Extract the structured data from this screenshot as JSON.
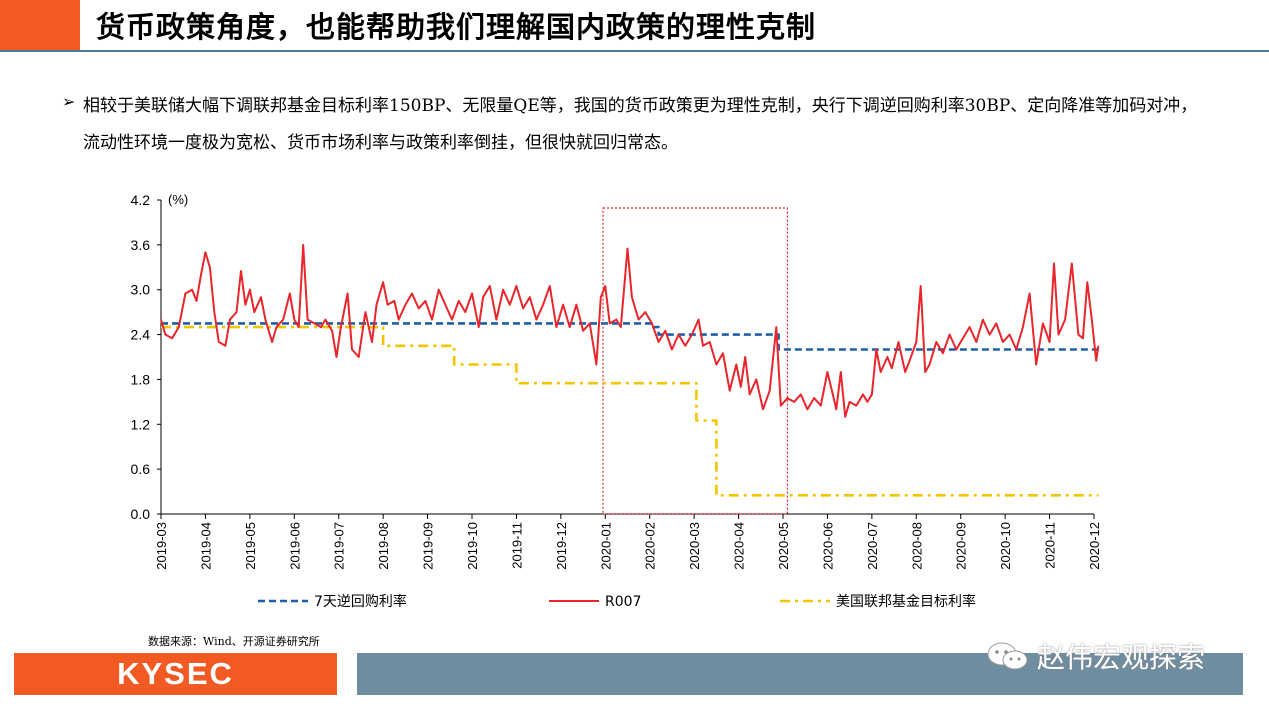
{
  "header": {
    "title": "货币政策角度，也能帮助我们理解国内政策的理性克制"
  },
  "body": {
    "bullet_symbol": "➢",
    "paragraph": "相较于美联储大幅下调联邦基金目标利率150BP、无限量QE等，我国的货币政策更为理性克制，央行下调逆回购利率30BP、定向降准等加码对冲，流动性环境一度极为宽松、货币市场利率与政策利率倒挂，但很快就回归常态。"
  },
  "chart_data": {
    "type": "line",
    "unit_label": "(%)",
    "ylim": [
      0,
      4.2
    ],
    "yticks": [
      "4.2",
      "3.6",
      "3.0",
      "2.4",
      "1.8",
      "1.2",
      "0.6",
      "0.0"
    ],
    "x_range": [
      "2019-03",
      "2020-12"
    ],
    "xticks": [
      "2019-03",
      "2019-04",
      "2019-05",
      "2019-06",
      "2019-07",
      "2019-08",
      "2019-09",
      "2019-10",
      "2019-11",
      "2019-12",
      "2020-01",
      "2020-02",
      "2020-03",
      "2020-04",
      "2020-05",
      "2020-06",
      "2020-07",
      "2020-08",
      "2020-09",
      "2020-10",
      "2020-11",
      "2020-12"
    ],
    "highlight": {
      "from": 9.95,
      "to": 14.1,
      "color": "#e8262c"
    },
    "series": [
      {
        "name": "7天逆回购利率",
        "color": "#1f5fa8",
        "style": "dash",
        "points": [
          [
            0,
            2.55
          ],
          [
            11.05,
            2.55
          ],
          [
            11.05,
            2.5
          ],
          [
            11.2,
            2.5
          ],
          [
            11.2,
            2.4
          ],
          [
            13.9,
            2.4
          ],
          [
            13.9,
            2.2
          ],
          [
            21.1,
            2.2
          ]
        ]
      },
      {
        "name": "R007",
        "color": "#e8262c",
        "style": "solid",
        "points": [
          [
            0,
            2.6
          ],
          [
            0.1,
            2.4
          ],
          [
            0.25,
            2.35
          ],
          [
            0.4,
            2.5
          ],
          [
            0.55,
            2.95
          ],
          [
            0.7,
            3.0
          ],
          [
            0.8,
            2.85
          ],
          [
            0.9,
            3.2
          ],
          [
            1.0,
            3.5
          ],
          [
            1.1,
            3.3
          ],
          [
            1.2,
            2.7
          ],
          [
            1.3,
            2.3
          ],
          [
            1.45,
            2.25
          ],
          [
            1.55,
            2.6
          ],
          [
            1.7,
            2.7
          ],
          [
            1.8,
            3.25
          ],
          [
            1.9,
            2.8
          ],
          [
            2.0,
            3.0
          ],
          [
            2.1,
            2.7
          ],
          [
            2.25,
            2.9
          ],
          [
            2.35,
            2.6
          ],
          [
            2.5,
            2.3
          ],
          [
            2.6,
            2.5
          ],
          [
            2.75,
            2.6
          ],
          [
            2.9,
            2.95
          ],
          [
            3.0,
            2.6
          ],
          [
            3.1,
            2.5
          ],
          [
            3.2,
            3.6
          ],
          [
            3.3,
            2.6
          ],
          [
            3.45,
            2.55
          ],
          [
            3.6,
            2.5
          ],
          [
            3.7,
            2.6
          ],
          [
            3.85,
            2.45
          ],
          [
            3.95,
            2.1
          ],
          [
            4.05,
            2.5
          ],
          [
            4.2,
            2.95
          ],
          [
            4.3,
            2.2
          ],
          [
            4.45,
            2.1
          ],
          [
            4.6,
            2.7
          ],
          [
            4.75,
            2.3
          ],
          [
            4.85,
            2.8
          ],
          [
            5.0,
            3.1
          ],
          [
            5.1,
            2.8
          ],
          [
            5.25,
            2.85
          ],
          [
            5.35,
            2.6
          ],
          [
            5.5,
            2.8
          ],
          [
            5.65,
            2.95
          ],
          [
            5.8,
            2.75
          ],
          [
            5.95,
            2.85
          ],
          [
            6.1,
            2.6
          ],
          [
            6.25,
            3.0
          ],
          [
            6.4,
            2.8
          ],
          [
            6.55,
            2.6
          ],
          [
            6.7,
            2.85
          ],
          [
            6.85,
            2.7
          ],
          [
            7.0,
            2.95
          ],
          [
            7.15,
            2.5
          ],
          [
            7.25,
            2.9
          ],
          [
            7.4,
            3.05
          ],
          [
            7.55,
            2.6
          ],
          [
            7.7,
            3.0
          ],
          [
            7.85,
            2.8
          ],
          [
            8.0,
            3.05
          ],
          [
            8.15,
            2.75
          ],
          [
            8.3,
            2.9
          ],
          [
            8.45,
            2.6
          ],
          [
            8.6,
            2.8
          ],
          [
            8.75,
            3.05
          ],
          [
            8.9,
            2.5
          ],
          [
            9.05,
            2.8
          ],
          [
            9.2,
            2.5
          ],
          [
            9.35,
            2.8
          ],
          [
            9.5,
            2.45
          ],
          [
            9.65,
            2.55
          ],
          [
            9.8,
            2.0
          ],
          [
            9.9,
            2.9
          ],
          [
            10.0,
            3.05
          ],
          [
            10.1,
            2.55
          ],
          [
            10.25,
            2.6
          ],
          [
            10.35,
            2.5
          ],
          [
            10.5,
            3.55
          ],
          [
            10.6,
            2.9
          ],
          [
            10.75,
            2.6
          ],
          [
            10.9,
            2.7
          ],
          [
            11.05,
            2.55
          ],
          [
            11.2,
            2.3
          ],
          [
            11.35,
            2.45
          ],
          [
            11.5,
            2.2
          ],
          [
            11.65,
            2.4
          ],
          [
            11.8,
            2.25
          ],
          [
            11.95,
            2.4
          ],
          [
            12.1,
            2.6
          ],
          [
            12.2,
            2.25
          ],
          [
            12.35,
            2.3
          ],
          [
            12.5,
            2.0
          ],
          [
            12.65,
            2.15
          ],
          [
            12.8,
            1.65
          ],
          [
            12.95,
            2.0
          ],
          [
            13.05,
            1.7
          ],
          [
            13.15,
            2.1
          ],
          [
            13.25,
            1.6
          ],
          [
            13.4,
            1.8
          ],
          [
            13.55,
            1.4
          ],
          [
            13.7,
            1.65
          ],
          [
            13.85,
            2.5
          ],
          [
            13.95,
            1.45
          ],
          [
            14.1,
            1.55
          ],
          [
            14.25,
            1.5
          ],
          [
            14.4,
            1.6
          ],
          [
            14.55,
            1.4
          ],
          [
            14.7,
            1.55
          ],
          [
            14.85,
            1.45
          ],
          [
            15.0,
            1.9
          ],
          [
            15.1,
            1.65
          ],
          [
            15.2,
            1.4
          ],
          [
            15.3,
            1.9
          ],
          [
            15.4,
            1.3
          ],
          [
            15.5,
            1.5
          ],
          [
            15.65,
            1.45
          ],
          [
            15.8,
            1.6
          ],
          [
            15.9,
            1.5
          ],
          [
            16.0,
            1.6
          ],
          [
            16.1,
            2.2
          ],
          [
            16.2,
            1.9
          ],
          [
            16.35,
            2.1
          ],
          [
            16.45,
            1.95
          ],
          [
            16.6,
            2.3
          ],
          [
            16.75,
            1.9
          ],
          [
            16.85,
            2.05
          ],
          [
            17.0,
            2.3
          ],
          [
            17.1,
            3.05
          ],
          [
            17.2,
            1.9
          ],
          [
            17.3,
            2.0
          ],
          [
            17.45,
            2.3
          ],
          [
            17.6,
            2.15
          ],
          [
            17.75,
            2.4
          ],
          [
            17.9,
            2.2
          ],
          [
            18.05,
            2.35
          ],
          [
            18.2,
            2.5
          ],
          [
            18.35,
            2.3
          ],
          [
            18.5,
            2.6
          ],
          [
            18.65,
            2.4
          ],
          [
            18.8,
            2.55
          ],
          [
            18.95,
            2.3
          ],
          [
            19.1,
            2.4
          ],
          [
            19.25,
            2.2
          ],
          [
            19.4,
            2.5
          ],
          [
            19.55,
            2.95
          ],
          [
            19.7,
            2.0
          ],
          [
            19.85,
            2.55
          ],
          [
            20.0,
            2.3
          ],
          [
            20.1,
            3.35
          ],
          [
            20.2,
            2.4
          ],
          [
            20.35,
            2.6
          ],
          [
            20.5,
            3.35
          ],
          [
            20.65,
            2.4
          ],
          [
            20.75,
            2.35
          ],
          [
            20.85,
            3.1
          ],
          [
            20.95,
            2.6
          ],
          [
            21.05,
            2.05
          ],
          [
            21.1,
            2.25
          ]
        ]
      },
      {
        "name": "美国联邦基金目标利率",
        "color": "#f2c500",
        "style": "dashdot",
        "points": [
          [
            0,
            2.5
          ],
          [
            5.0,
            2.5
          ],
          [
            5.0,
            2.25
          ],
          [
            6.6,
            2.25
          ],
          [
            6.6,
            2.0
          ],
          [
            8.0,
            2.0
          ],
          [
            8.0,
            1.75
          ],
          [
            12.05,
            1.75
          ],
          [
            12.05,
            1.25
          ],
          [
            12.5,
            1.25
          ],
          [
            12.5,
            0.25
          ],
          [
            21.1,
            0.25
          ]
        ]
      }
    ]
  },
  "source": {
    "text": "数据来源：Wind、开源证券研究所"
  },
  "footer": {
    "logo_text": "KYSEC",
    "watermark_text": "赵伟宏观探索"
  }
}
